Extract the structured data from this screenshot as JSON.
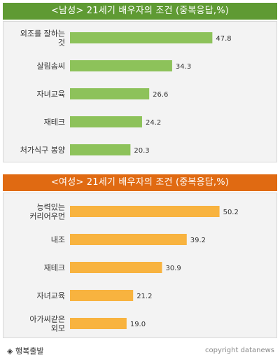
{
  "chart_data": [
    {
      "type": "bar",
      "title": "<남성> 21세기 배우자의 조건 (중복응답,%)",
      "categories": [
        "외조를 잘하는 것",
        "살림솜씨",
        "자녀교육",
        "재테크",
        "처가식구 봉양"
      ],
      "category_lines": [
        [
          "외조를 잘하는",
          "것"
        ],
        [
          "살림솜씨"
        ],
        [
          "자녀교육"
        ],
        [
          "재테크"
        ],
        [
          "처가식구 봉양"
        ]
      ],
      "values": [
        47.8,
        34.3,
        26.6,
        24.2,
        20.3
      ],
      "value_labels": [
        "47.8",
        "34.3",
        "26.6",
        "24.2",
        "20.3"
      ],
      "orientation": "horizontal",
      "xlim": [
        0,
        55
      ],
      "grid": false,
      "title_bg": "#5f9a33",
      "bar_color": "#8dc25a"
    },
    {
      "type": "bar",
      "title": "<여성> 21세기 배우자의 조건 (중복응답,%)",
      "categories": [
        "능력있는 커리어우먼",
        "내조",
        "재테크",
        "자녀교육",
        "아가씨같은 외모"
      ],
      "category_lines": [
        [
          "능력있는",
          "커리어우먼"
        ],
        [
          "내조"
        ],
        [
          "재테크"
        ],
        [
          "자녀교육"
        ],
        [
          "아가씨같은",
          "외모"
        ]
      ],
      "values": [
        50.2,
        39.2,
        30.9,
        21.2,
        19.0
      ],
      "value_labels": [
        "50.2",
        "39.2",
        "30.9",
        "21.2",
        "19.0"
      ],
      "orientation": "horizontal",
      "xlim": [
        0,
        55
      ],
      "grid": false,
      "title_bg": "#e06a12",
      "bar_color": "#f8b33f"
    }
  ],
  "footer": {
    "source_icon": "diamond-bullet-icon",
    "source_label": "행복출발",
    "copyright": "copyright datanews"
  }
}
